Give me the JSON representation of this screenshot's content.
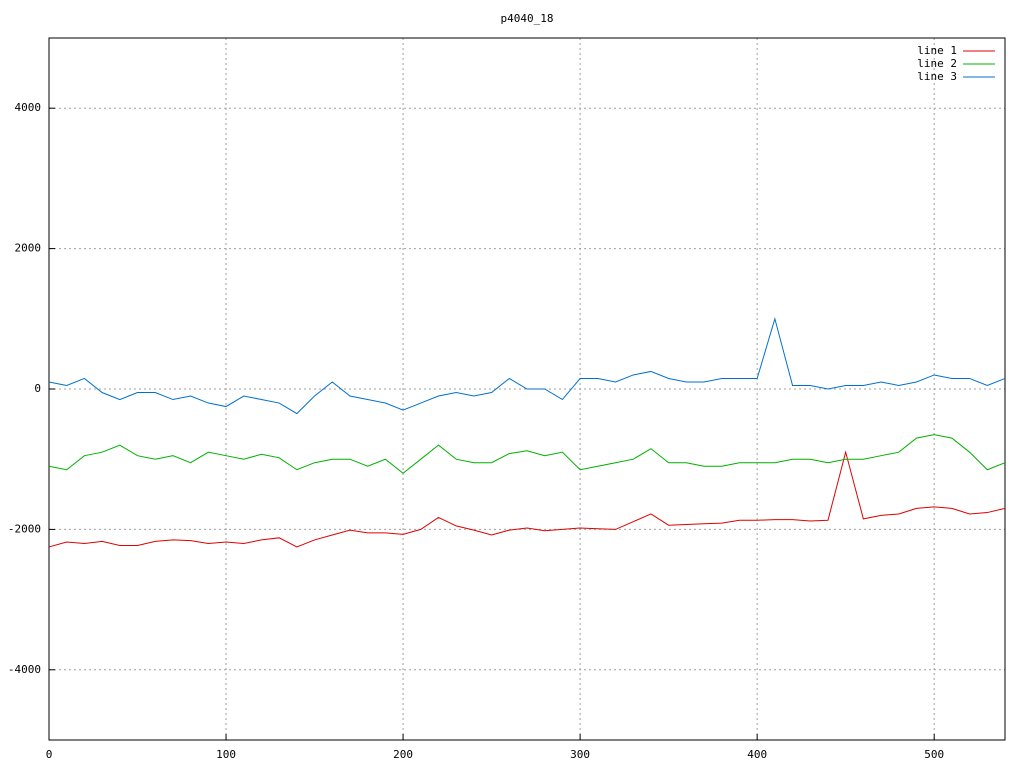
{
  "chart_data": {
    "type": "line",
    "title": "p4040_18",
    "x": [
      0,
      10,
      20,
      30,
      40,
      50,
      60,
      70,
      80,
      90,
      100,
      110,
      120,
      130,
      140,
      150,
      160,
      170,
      180,
      190,
      200,
      210,
      220,
      230,
      240,
      250,
      260,
      270,
      280,
      290,
      300,
      310,
      320,
      330,
      340,
      350,
      360,
      370,
      380,
      390,
      400,
      410,
      420,
      430,
      440,
      450,
      460,
      470,
      480,
      490,
      500,
      510,
      520,
      530,
      540
    ],
    "series": [
      {
        "name": "line 1",
        "color": "#e00000",
        "values": [
          -2250,
          -2180,
          -2200,
          -2170,
          -2230,
          -2230,
          -2170,
          -2150,
          -2160,
          -2200,
          -2180,
          -2200,
          -2150,
          -2120,
          -2250,
          -2150,
          -2080,
          -2010,
          -2050,
          -2050,
          -2070,
          -2000,
          -1830,
          -1950,
          -2010,
          -2080,
          -2010,
          -1980,
          -2020,
          -2000,
          -1980,
          -1990,
          -2000,
          -1890,
          -1780,
          -1940,
          -1930,
          -1920,
          -1910,
          -1870,
          -1870,
          -1860,
          -1860,
          -1880,
          -1870,
          -900,
          -1850,
          -1800,
          -1780,
          -1700,
          -1680,
          -1700,
          -1780,
          -1760,
          -1700
        ]
      },
      {
        "name": "line 2",
        "color": "#00b000",
        "values": [
          -1100,
          -1150,
          -950,
          -900,
          -800,
          -950,
          -1000,
          -950,
          -1050,
          -900,
          -950,
          -1000,
          -930,
          -980,
          -1150,
          -1050,
          -1000,
          -1000,
          -1100,
          -1000,
          -1200,
          -1000,
          -800,
          -1000,
          -1050,
          -1050,
          -920,
          -880,
          -950,
          -900,
          -1150,
          -1100,
          -1050,
          -1000,
          -850,
          -1050,
          -1050,
          -1100,
          -1100,
          -1050,
          -1050,
          -1050,
          -1000,
          -1000,
          -1050,
          -1000,
          -1000,
          -950,
          -900,
          -700,
          -650,
          -700,
          -900,
          -1150,
          -1050
        ]
      },
      {
        "name": "line 3",
        "color": "#0070d0",
        "values": [
          100,
          50,
          150,
          -50,
          -150,
          -50,
          -50,
          -150,
          -100,
          -200,
          -250,
          -100,
          -150,
          -200,
          -350,
          -100,
          100,
          -100,
          -150,
          -200,
          -300,
          -200,
          -100,
          -50,
          -100,
          -50,
          150,
          0,
          0,
          -150,
          150,
          150,
          100,
          200,
          250,
          150,
          100,
          100,
          150,
          150,
          150,
          1000,
          50,
          50,
          0,
          50,
          50,
          100,
          50,
          100,
          200,
          150,
          150,
          50,
          150
        ]
      }
    ],
    "xlim": [
      0,
      540
    ],
    "xticks": [
      0,
      100,
      200,
      300,
      400,
      500
    ],
    "ylim": [
      -5000,
      5000
    ],
    "yticks": [
      -4000,
      -2000,
      0,
      2000,
      4000
    ],
    "grid": true,
    "legend": "top-right"
  }
}
